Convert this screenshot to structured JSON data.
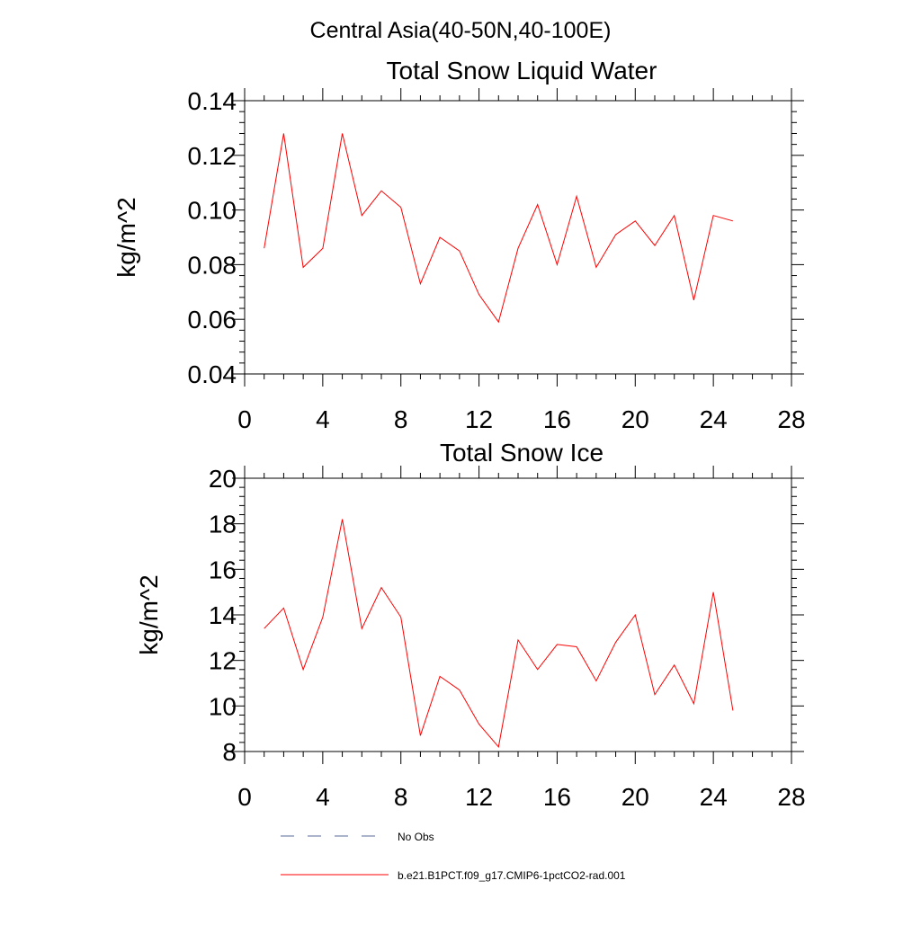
{
  "page": {
    "title": "Central Asia(40-50N,40-100E)"
  },
  "chart_data": [
    {
      "type": "line",
      "title": "Total Snow Liquid Water",
      "xlabel": "",
      "ylabel": "kg/m^2",
      "xlim": [
        0,
        28
      ],
      "ylim": [
        0.04,
        0.14
      ],
      "xticks": [
        "0",
        "4",
        "8",
        "12",
        "16",
        "20",
        "24",
        "28"
      ],
      "yticks": [
        "0.04",
        "0.06",
        "0.08",
        "0.10",
        "0.12",
        "0.14"
      ],
      "x": [
        1,
        2,
        3,
        4,
        5,
        6,
        7,
        8,
        9,
        10,
        11,
        12,
        13,
        14,
        15,
        16,
        17,
        18,
        19,
        20,
        21,
        22,
        23,
        24,
        25
      ],
      "series": [
        {
          "name": "b.e21.B1PCT.f09_g17.CMIP6-1pctCO2-rad.001",
          "color": "#ff0000",
          "values": [
            0.086,
            0.128,
            0.079,
            0.086,
            0.128,
            0.098,
            0.107,
            0.101,
            0.073,
            0.09,
            0.085,
            0.069,
            0.059,
            0.086,
            0.102,
            0.08,
            0.105,
            0.079,
            0.091,
            0.096,
            0.087,
            0.098,
            0.067,
            0.098,
            0.096
          ]
        }
      ],
      "grid": false
    },
    {
      "type": "line",
      "title": "Total Snow Ice",
      "xlabel": "",
      "ylabel": "kg/m^2",
      "xlim": [
        0,
        28
      ],
      "ylim": [
        8,
        20
      ],
      "xticks": [
        "0",
        "4",
        "8",
        "12",
        "16",
        "20",
        "24",
        "28"
      ],
      "yticks": [
        "8",
        "10",
        "12",
        "14",
        "16",
        "18",
        "20"
      ],
      "x": [
        1,
        2,
        3,
        4,
        5,
        6,
        7,
        8,
        9,
        10,
        11,
        12,
        13,
        14,
        15,
        16,
        17,
        18,
        19,
        20,
        21,
        22,
        23,
        24,
        25
      ],
      "series": [
        {
          "name": "b.e21.B1PCT.f09_g17.CMIP6-1pctCO2-rad.001",
          "color": "#ff0000",
          "values": [
            13.4,
            14.3,
            11.6,
            13.9,
            18.2,
            13.4,
            15.2,
            13.9,
            8.7,
            11.3,
            10.7,
            9.2,
            8.2,
            12.9,
            11.6,
            12.7,
            12.6,
            11.1,
            12.8,
            14.0,
            10.5,
            11.8,
            10.1,
            15.0,
            9.8
          ]
        }
      ],
      "grid": false
    }
  ],
  "legend": {
    "position": "bottom-left",
    "items": [
      {
        "label": "No Obs",
        "color": "#5a6a9a",
        "style": "dashed"
      },
      {
        "label": "b.e21.B1PCT.f09_g17.CMIP6-1pctCO2-rad.001",
        "color": "#ff0000",
        "style": "solid"
      }
    ]
  }
}
